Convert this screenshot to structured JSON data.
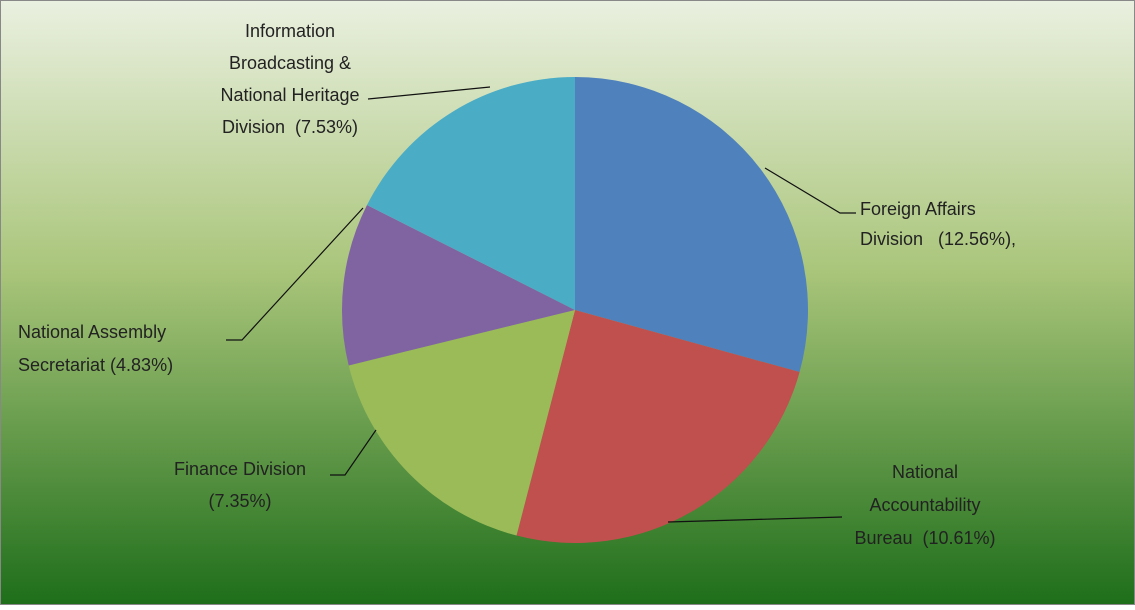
{
  "chart_data": {
    "type": "pie",
    "values": [
      12.56,
      10.61,
      7.35,
      4.83,
      7.53
    ],
    "value_labels": [
      [
        "Foreign Affairs",
        "Division   (12.56%),"
      ],
      [
        "National",
        "Accountability",
        "Bureau  (10.61%)"
      ],
      [
        "Finance Division",
        "(7.35%)"
      ],
      [
        "National Assembly",
        "Secretariat (4.83%)"
      ],
      [
        "Information",
        "Broadcasting &",
        "National Heritage",
        "Division  (7.53%)"
      ]
    ],
    "colors": [
      "#4f81bd",
      "#c0504d",
      "#9bbb59",
      "#8064a2",
      "#4bacc6"
    ]
  }
}
